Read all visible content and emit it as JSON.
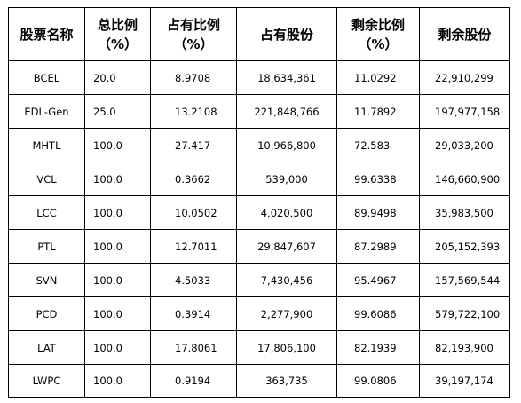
{
  "headers": {
    "name": "股票名称",
    "total_line1": "总比例",
    "total_line2": "（%）",
    "held_pct_line1": "占有比例",
    "held_pct_line2": "（%）",
    "held_shares": "占有股份",
    "rem_pct_line1": "剩余比例",
    "rem_pct_line2": "（%）",
    "rem_shares": "剩余股份"
  },
  "rows": [
    {
      "name": "BCEL",
      "total": "20.0",
      "held_pct": "8.9708",
      "held_shares": "18,634,361",
      "rem_pct": "11.0292",
      "rem_shares": "22,910,299"
    },
    {
      "name": "EDL-Gen",
      "total": "25.0",
      "held_pct": "13.2108",
      "held_shares": "221,848,766",
      "rem_pct": "11.7892",
      "rem_shares": "197,977,158"
    },
    {
      "name": "MHTL",
      "total": "100.0",
      "held_pct": "27.417",
      "held_shares": "10,966,800",
      "rem_pct": "72.583",
      "rem_shares": "29,033,200"
    },
    {
      "name": "VCL",
      "total": "100.0",
      "held_pct": "0.3662",
      "held_shares": "539,000",
      "rem_pct": "99.6338",
      "rem_shares": "146,660,900"
    },
    {
      "name": "LCC",
      "total": "100.0",
      "held_pct": "10.0502",
      "held_shares": "4,020,500",
      "rem_pct": "89.9498",
      "rem_shares": "35,983,500"
    },
    {
      "name": "PTL",
      "total": "100.0",
      "held_pct": "12.7011",
      "held_shares": "29,847,607",
      "rem_pct": "87.2989",
      "rem_shares": "205,152,393"
    },
    {
      "name": "SVN",
      "total": "100.0",
      "held_pct": "4.5033",
      "held_shares": "7,430,456",
      "rem_pct": "95.4967",
      "rem_shares": "157,569,544"
    },
    {
      "name": "PCD",
      "total": "100.0",
      "held_pct": "0.3914",
      "held_shares": "2,277,900",
      "rem_pct": "99.6086",
      "rem_shares": "579,722,100"
    },
    {
      "name": "LAT",
      "total": "100.0",
      "held_pct": "17.8061",
      "held_shares": "17,806,100",
      "rem_pct": "82.1939",
      "rem_shares": "82,193,900"
    },
    {
      "name": "LWPC",
      "total": "100.0",
      "held_pct": "0.9194",
      "held_shares": "363,735",
      "rem_pct": "99.0806",
      "rem_shares": "39,197,174"
    }
  ]
}
